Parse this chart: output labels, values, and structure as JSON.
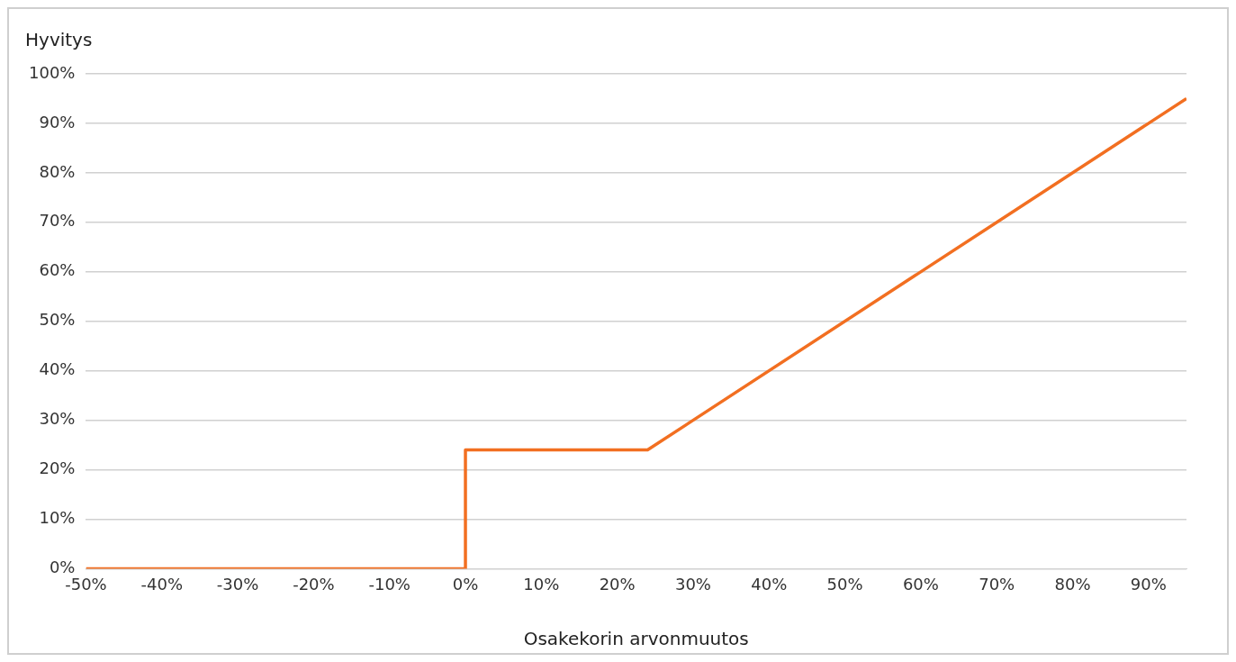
{
  "chart_data": {
    "type": "line",
    "xlabel": "Osakekorin arvonmuutos",
    "ylabel": "Hyvitys",
    "series": [
      {
        "color": "#f26f21",
        "x": [
          -50,
          0,
          0,
          24,
          95
        ],
        "values": [
          0,
          0,
          24,
          24,
          95
        ]
      }
    ],
    "xlim": [
      -50,
      95
    ],
    "ylim": [
      0,
      100
    ],
    "xticks": [
      {
        "value": -50,
        "label": "-50%"
      },
      {
        "value": -40,
        "label": "-40%"
      },
      {
        "value": -30,
        "label": "-30%"
      },
      {
        "value": -20,
        "label": "-20%"
      },
      {
        "value": -10,
        "label": "-10%"
      },
      {
        "value": 0,
        "label": "0%"
      },
      {
        "value": 10,
        "label": "10%"
      },
      {
        "value": 20,
        "label": "20%"
      },
      {
        "value": 30,
        "label": "30%"
      },
      {
        "value": 40,
        "label": "40%"
      },
      {
        "value": 50,
        "label": "50%"
      },
      {
        "value": 60,
        "label": "60%"
      },
      {
        "value": 70,
        "label": "70%"
      },
      {
        "value": 80,
        "label": "80%"
      },
      {
        "value": 90,
        "label": "90%"
      }
    ],
    "yticks": [
      {
        "value": 0,
        "label": "0%"
      },
      {
        "value": 10,
        "label": "10%"
      },
      {
        "value": 20,
        "label": "20%"
      },
      {
        "value": 30,
        "label": "30%"
      },
      {
        "value": 40,
        "label": "40%"
      },
      {
        "value": 50,
        "label": "50%"
      },
      {
        "value": 60,
        "label": "60%"
      },
      {
        "value": 70,
        "label": "70%"
      },
      {
        "value": 80,
        "label": "80%"
      },
      {
        "value": 90,
        "label": "90%"
      },
      {
        "value": 100,
        "label": "100%"
      }
    ],
    "grid": "y",
    "legend": false,
    "marker": "none",
    "line_style": "solid"
  }
}
